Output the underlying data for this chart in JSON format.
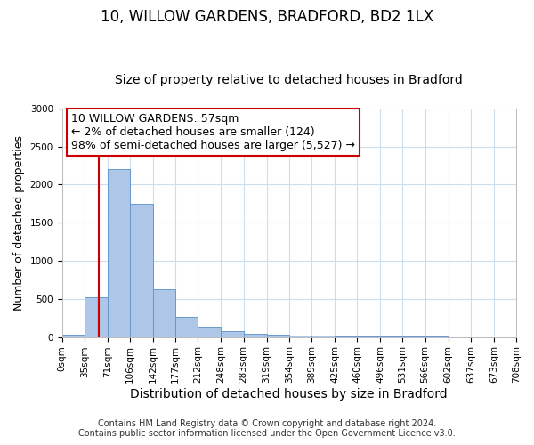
{
  "title": "10, WILLOW GARDENS, BRADFORD, BD2 1LX",
  "subtitle": "Size of property relative to detached houses in Bradford",
  "xlabel": "Distribution of detached houses by size in Bradford",
  "ylabel": "Number of detached properties",
  "bin_edges": [
    0,
    35,
    71,
    106,
    142,
    177,
    212,
    248,
    283,
    319,
    354,
    389,
    425,
    460,
    496,
    531,
    566,
    602,
    637,
    673,
    708
  ],
  "bar_heights": [
    30,
    520,
    2200,
    1750,
    630,
    260,
    130,
    75,
    40,
    30,
    20,
    15,
    5,
    5,
    5,
    3,
    2,
    1,
    0,
    0
  ],
  "bar_color": "#aec6e8",
  "bar_edgecolor": "#6699cc",
  "redline_x": 57,
  "ylim": [
    0,
    3000
  ],
  "yticks": [
    0,
    500,
    1000,
    1500,
    2000,
    2500,
    3000
  ],
  "annotation_line1": "10 WILLOW GARDENS: 57sqm",
  "annotation_line2": "← 2% of detached houses are smaller (124)",
  "annotation_line3": "98% of semi-detached houses are larger (5,527) →",
  "box_edgecolor": "#cc0000",
  "footer_line1": "Contains HM Land Registry data © Crown copyright and database right 2024.",
  "footer_line2": "Contains public sector information licensed under the Open Government Licence v3.0.",
  "bg_color": "#ffffff",
  "grid_color": "#ccddee",
  "tick_labels": [
    "0sqm",
    "35sqm",
    "71sqm",
    "106sqm",
    "142sqm",
    "177sqm",
    "212sqm",
    "248sqm",
    "283sqm",
    "319sqm",
    "354sqm",
    "389sqm",
    "425sqm",
    "460sqm",
    "496sqm",
    "531sqm",
    "566sqm",
    "602sqm",
    "637sqm",
    "673sqm",
    "708sqm"
  ],
  "title_fontsize": 12,
  "subtitle_fontsize": 10,
  "xlabel_fontsize": 10,
  "ylabel_fontsize": 9,
  "tick_fontsize": 7.5,
  "annotation_fontsize": 9,
  "footer_fontsize": 7
}
